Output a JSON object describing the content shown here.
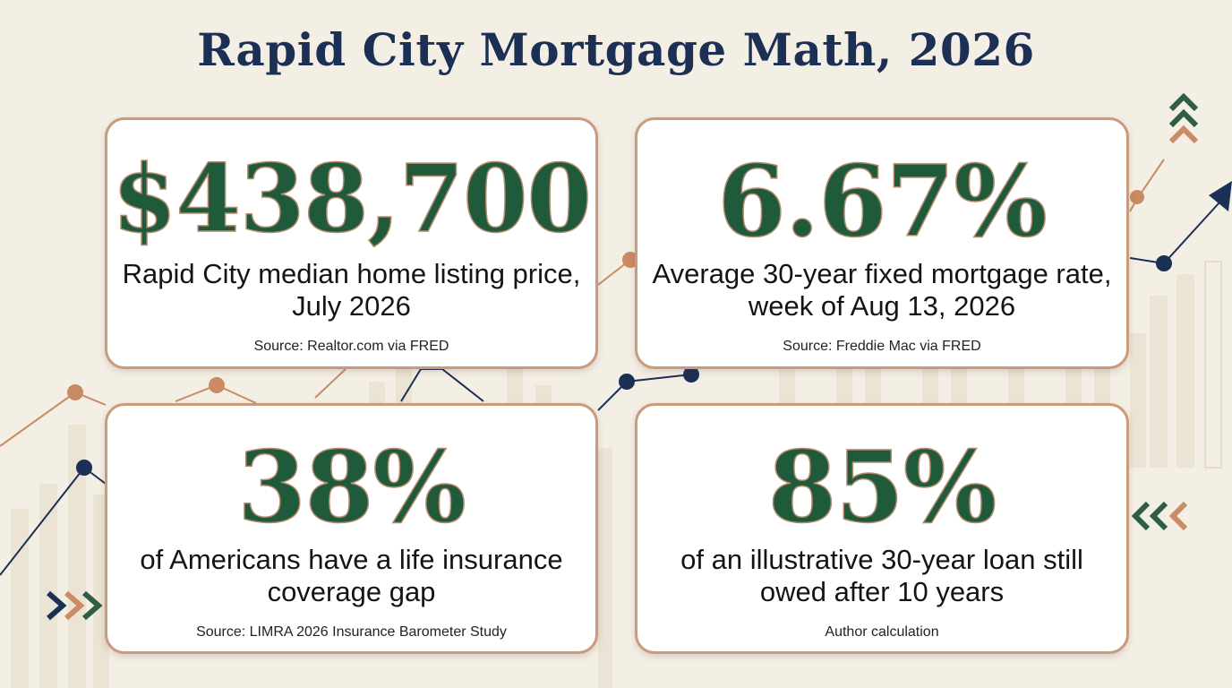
{
  "title": "Rapid City Mortgage Math, 2026",
  "colors": {
    "background": "#f4efe5",
    "title": "#1c2f55",
    "stat_number": "#1f5a3a",
    "card_border": "#c99a7c",
    "accent_copper": "#c98a64",
    "accent_navy": "#1c2f55",
    "accent_green": "#2e5f45"
  },
  "cards": [
    {
      "value": "$438,700",
      "description": "Rapid City median home listing price, July 2026",
      "source": "Source: Realtor.com via FRED"
    },
    {
      "value": "6.67%",
      "description": "Average 30-year fixed mortgage rate, week of Aug 13, 2026",
      "source": "Source: Freddie Mac via FRED"
    },
    {
      "value": "38%",
      "description": "of Americans have a life insurance coverage gap",
      "source": "Source: LIMRA 2026 Insurance Barometer Study"
    },
    {
      "value": "85%",
      "description": "of an illustrative 30-year loan still owed after 10 years",
      "source": "Author calculation"
    }
  ],
  "decorations": {
    "icons": [
      "chevron-up-icon",
      "chevron-right-icon",
      "chevron-left-icon",
      "trend-arrow-icon"
    ]
  }
}
